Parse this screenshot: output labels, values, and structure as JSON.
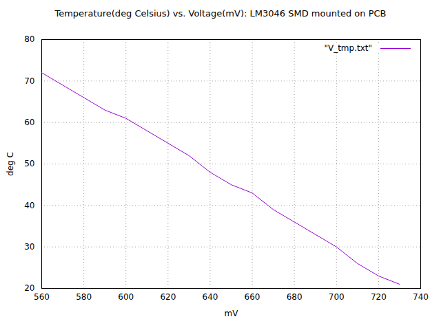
{
  "chart_data": {
    "type": "line",
    "title": "Temperature(deg Celsius) vs. Voltage(mV): LM3046 SMD mounted on PCB",
    "x_label": "mV",
    "y_label": "deg C",
    "x": [
      560,
      570,
      580,
      590,
      600,
      610,
      620,
      630,
      640,
      650,
      660,
      670,
      680,
      690,
      700,
      710,
      720,
      730
    ],
    "series": [
      {
        "name": "\"V_tmp.txt\"",
        "color": "#9400d3",
        "line_style": "solid",
        "values": [
          72,
          69,
          66,
          63,
          61,
          58,
          55,
          52,
          48,
          45,
          43,
          39,
          36,
          33,
          30,
          26,
          23,
          21
        ]
      }
    ],
    "xlim": [
      560,
      740
    ],
    "xticks": [
      560,
      580,
      600,
      620,
      640,
      660,
      680,
      700,
      720,
      740
    ],
    "ylim": [
      20,
      80
    ],
    "yticks": [
      20,
      30,
      40,
      50,
      60,
      70,
      80
    ],
    "grid": true,
    "legend": "top-right"
  }
}
